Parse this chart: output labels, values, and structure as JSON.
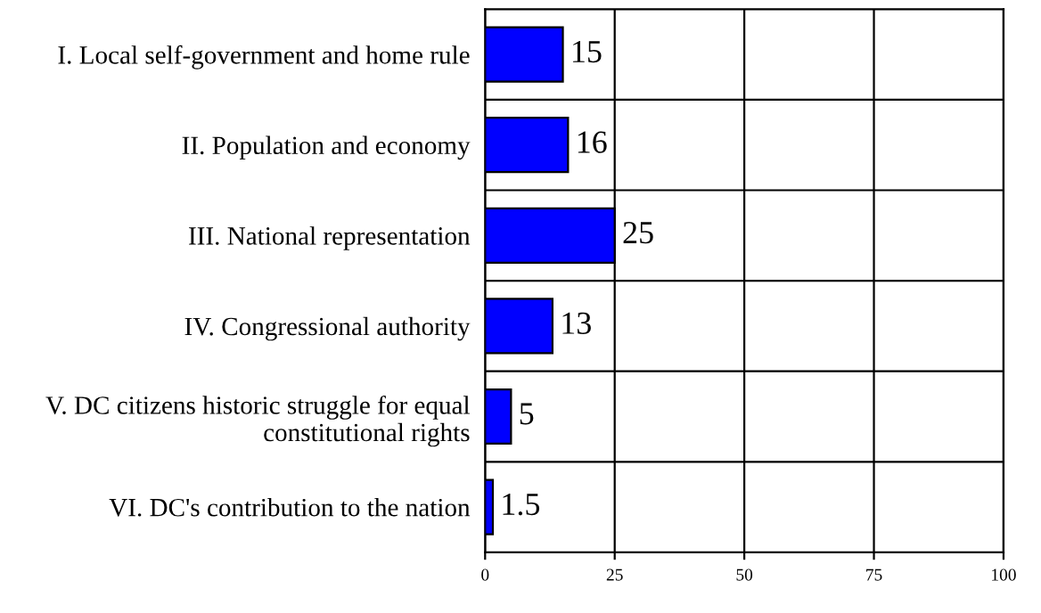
{
  "chart_data": {
    "type": "bar",
    "orientation": "horizontal",
    "categories": [
      "I. Local self-government and home rule",
      "II. Population and economy",
      "III. National representation",
      "IV. Congressional authority",
      "V. DC citizens historic struggle for equal constitutional rights",
      "VI. DC's contribution to the nation"
    ],
    "values": [
      15,
      16,
      25,
      13,
      5,
      1.5
    ],
    "color": "#0000ff",
    "xlim": [
      0,
      100
    ],
    "xticks": [
      0,
      25,
      50,
      75,
      100
    ],
    "grid": true,
    "data_labels": true
  }
}
